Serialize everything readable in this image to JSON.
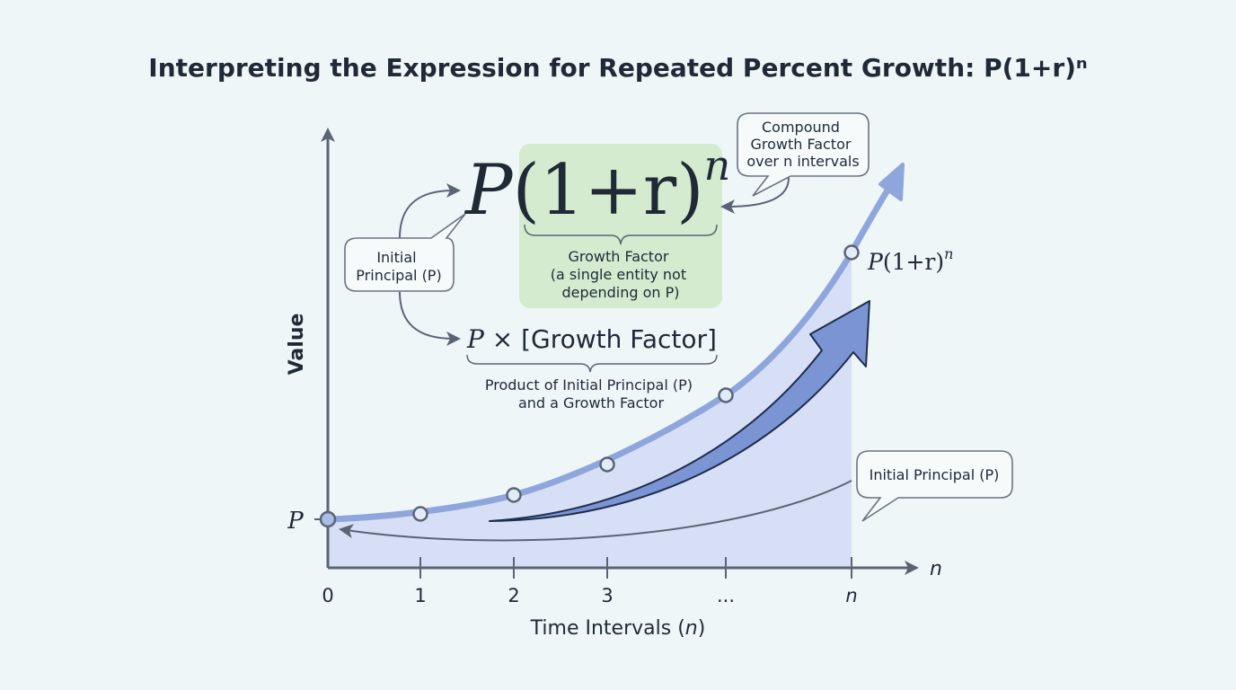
{
  "title": "Interpreting the Expression for Repeated Percent Growth: P(1+r)ⁿ",
  "formula": {
    "base": "P",
    "paren": "(1+r)",
    "exponent": "n"
  },
  "growth_factor_box": {
    "line1": "Growth Factor",
    "line2": "(a single entity not",
    "line3": "depending on P)",
    "color": "#d4ebcf"
  },
  "product_expression": {
    "p": "P",
    "rest": " × [Growth Factor]"
  },
  "product_caption": {
    "line1": "Product of Initial Principal (P)",
    "line2": "and a Growth Factor"
  },
  "bubbles": {
    "initial_principal_top": {
      "line1": "Initial",
      "line2": "Principal (P)"
    },
    "compound": {
      "line1": "Compound",
      "line2": "Growth Factor",
      "line3": "over n intervals"
    },
    "initial_principal_bottom": "Initial Principal (P)"
  },
  "axes": {
    "y_label": "Value",
    "x_label_prefix": "Time Intervals (",
    "x_label_var": "n",
    "x_label_suffix": ")",
    "x_arrow_label": "n",
    "y_tick_label": "P",
    "x_ticks": [
      "0",
      "1",
      "2",
      "3",
      "...",
      "n"
    ]
  },
  "curve_end_label": {
    "base": "P",
    "paren": "(1+r)",
    "exponent": "n"
  },
  "colors": {
    "curve": "#8ea6dc",
    "area": "#d3ddf4",
    "big_arrow": "#7b95d4",
    "axis": "#5b6474"
  }
}
